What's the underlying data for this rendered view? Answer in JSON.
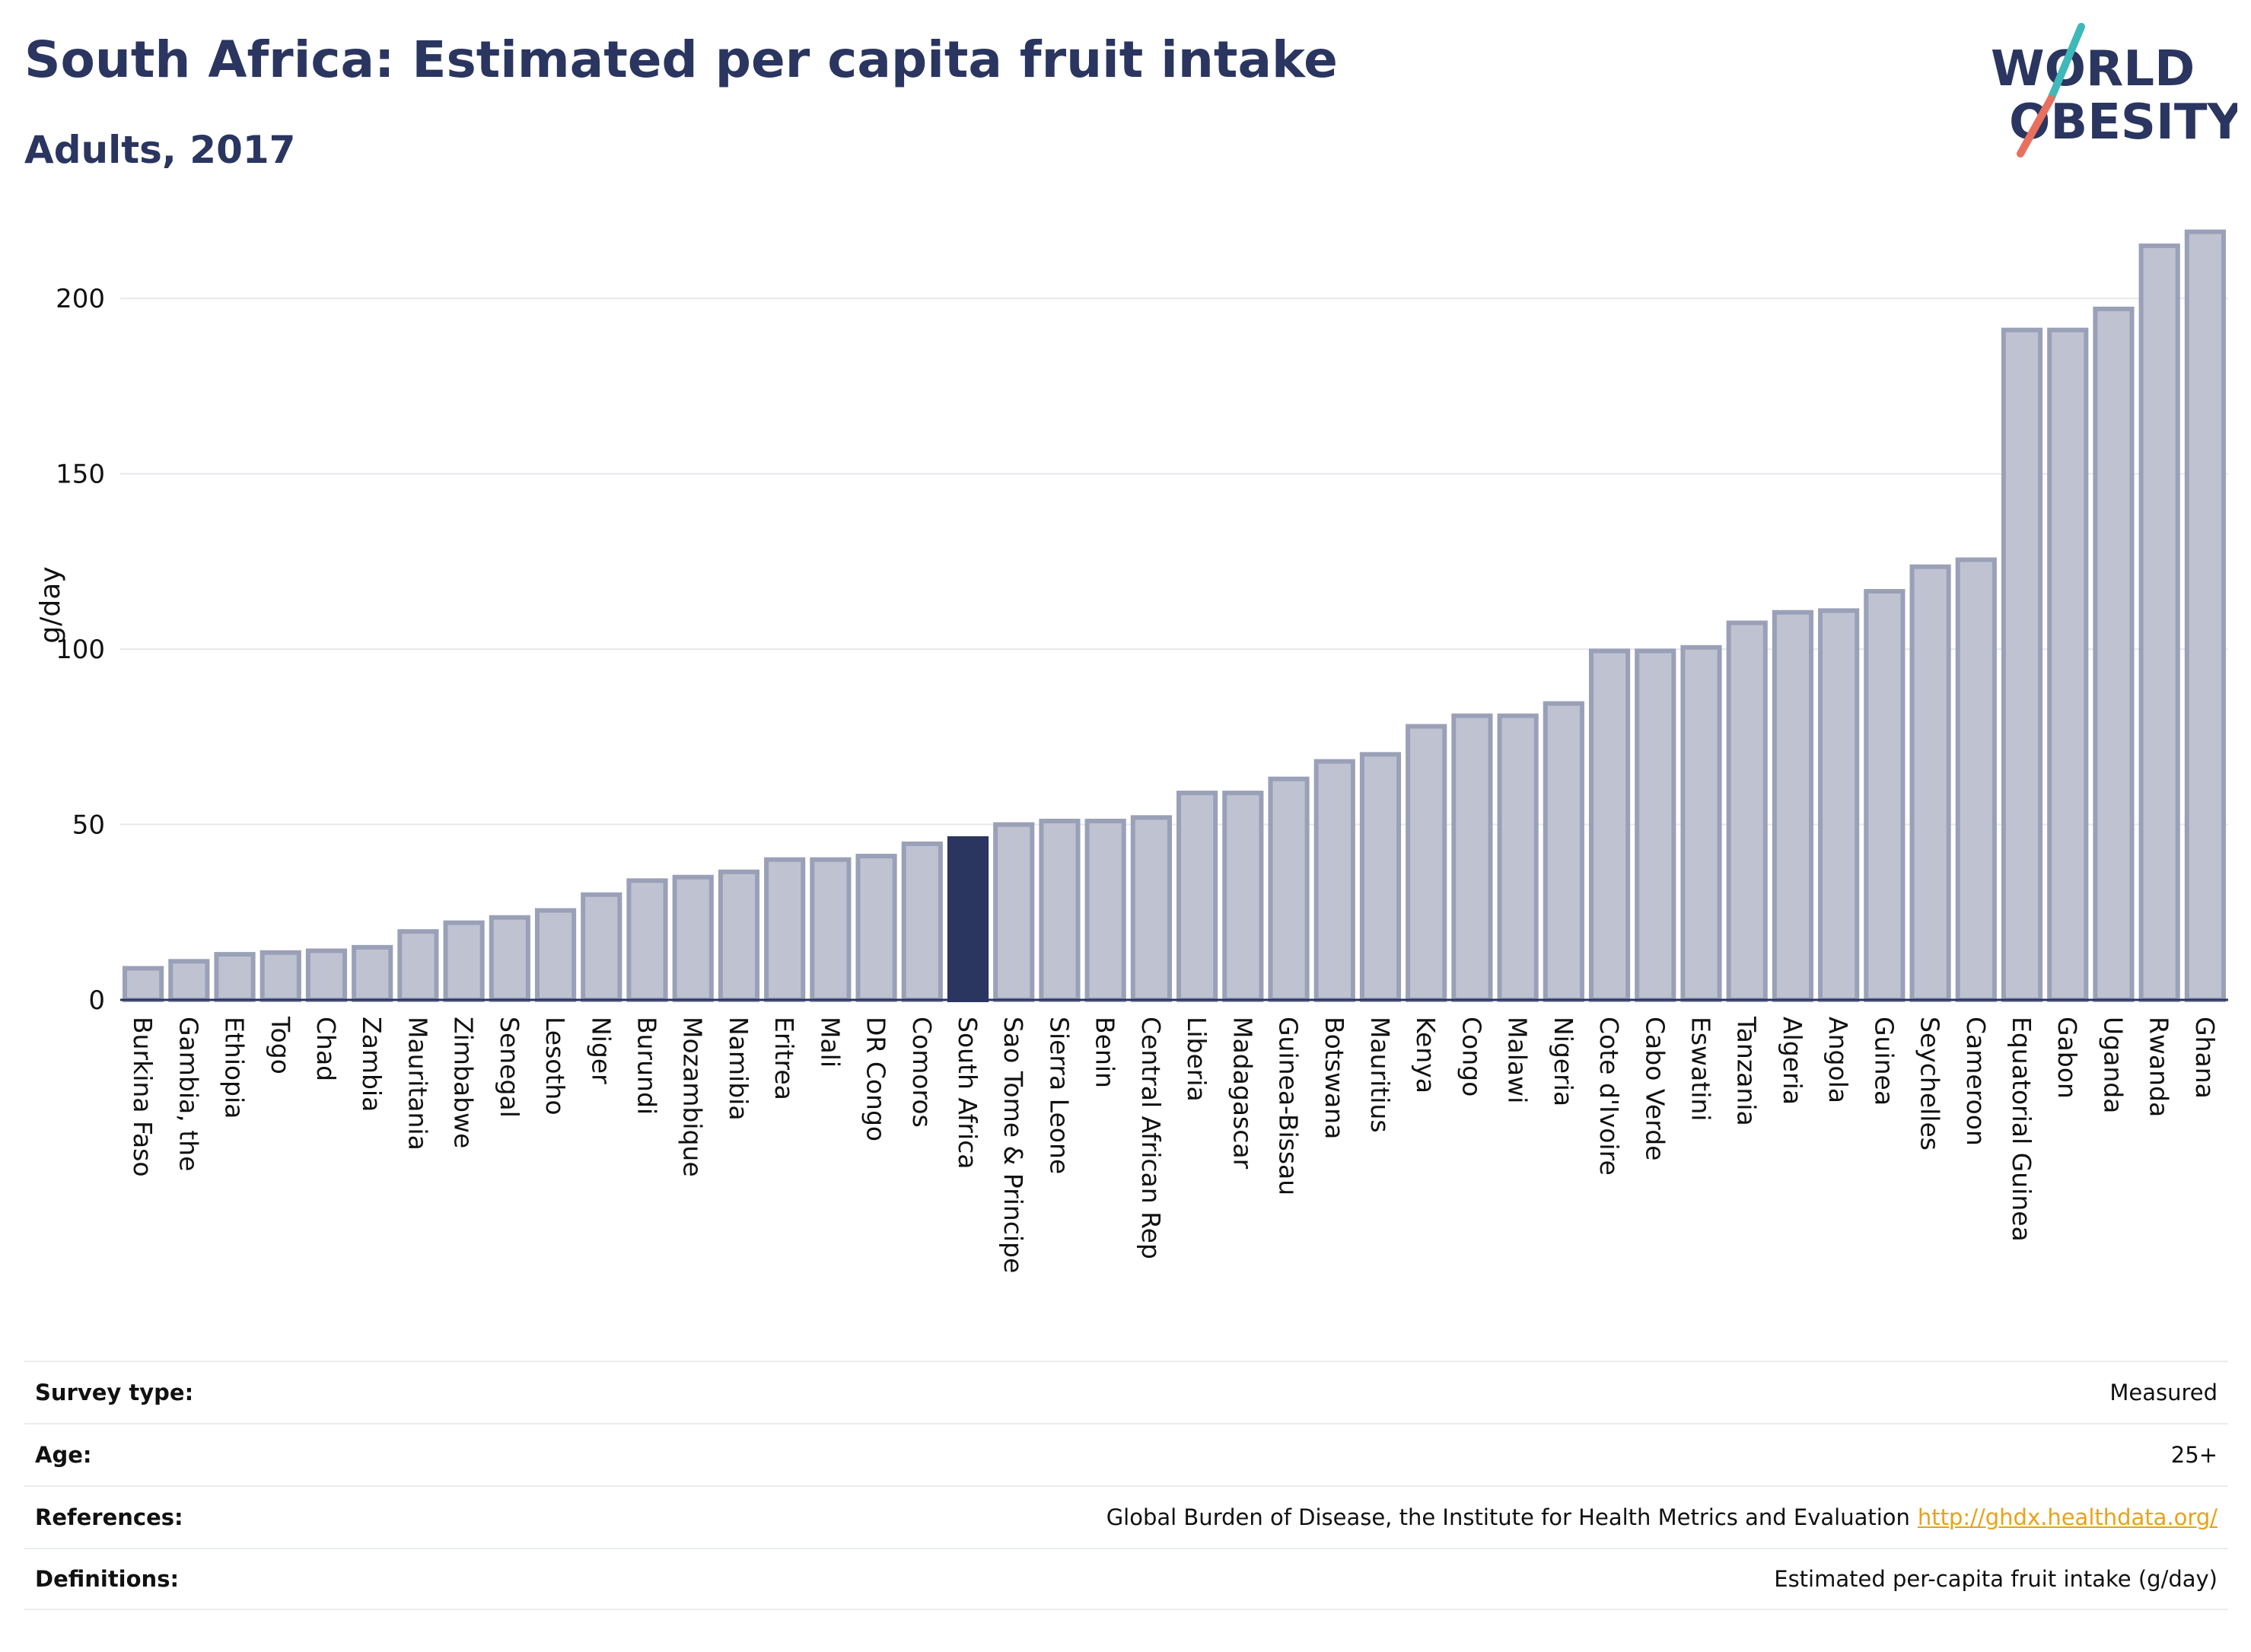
{
  "header": {
    "title": "South Africa: Estimated per capita fruit intake",
    "subtitle": "Adults, 2017"
  },
  "logo": {
    "line1": "WORLD",
    "line2": "OBESITY"
  },
  "colors": {
    "bar": "#bfc3d1",
    "bar_stroke": "#9aa0b7",
    "highlight": "#2a3560",
    "grid": "#e6e8ee",
    "text": "#2a3560",
    "logo_teal": "#3fb8b9",
    "logo_coral": "#e8705e"
  },
  "chart_data": {
    "type": "bar",
    "ylabel": "g/day",
    "ylim": [
      0,
      220
    ],
    "yticks": [
      0,
      50,
      100,
      150,
      200
    ],
    "highlight": "South Africa",
    "grid": true,
    "categories": [
      "Burkina Faso",
      "Gambia, the",
      "Ethiopia",
      "Togo",
      "Chad",
      "Zambia",
      "Mauritania",
      "Zimbabwe",
      "Senegal",
      "Lesotho",
      "Niger",
      "Burundi",
      "Mozambique",
      "Namibia",
      "Eritrea",
      "Mali",
      "DR Congo",
      "Comoros",
      "South Africa",
      "Sao Tome & Principe",
      "Sierra Leone",
      "Benin",
      "Central African Rep",
      "Liberia",
      "Madagascar",
      "Guinea-Bissau",
      "Botswana",
      "Mauritius",
      "Kenya",
      "Congo",
      "Malawi",
      "Nigeria",
      "Cote d'Ivoire",
      "Cabo Verde",
      "Eswatini",
      "Tanzania",
      "Algeria",
      "Angola",
      "Guinea",
      "Seychelles",
      "Cameroon",
      "Equatorial Guinea",
      "Gabon",
      "Uganda",
      "Rwanda",
      "Ghana"
    ],
    "values": [
      9,
      11,
      13,
      13.5,
      14,
      15,
      19.5,
      22,
      23.5,
      25.5,
      30,
      34,
      35,
      36.5,
      40,
      40,
      41,
      44.5,
      46,
      50,
      51,
      51,
      52,
      59,
      59,
      63,
      68,
      70,
      78,
      81,
      81,
      84.5,
      99.5,
      99.5,
      100.5,
      107.5,
      110.5,
      111,
      116.5,
      123.5,
      125.5,
      191,
      191,
      197,
      215,
      219
    ]
  },
  "info": {
    "rows": [
      {
        "label": "Survey type:",
        "value": "Measured",
        "link": ""
      },
      {
        "label": "Age:",
        "value": "25+",
        "link": ""
      },
      {
        "label": "References:",
        "value": "Global Burden of Disease, the Institute for Health Metrics and Evaluation",
        "link": "http://ghdx.healthdata.org/"
      },
      {
        "label": "Definitions:",
        "value": "Estimated per-capita fruit intake (g/day)",
        "link": ""
      }
    ]
  }
}
